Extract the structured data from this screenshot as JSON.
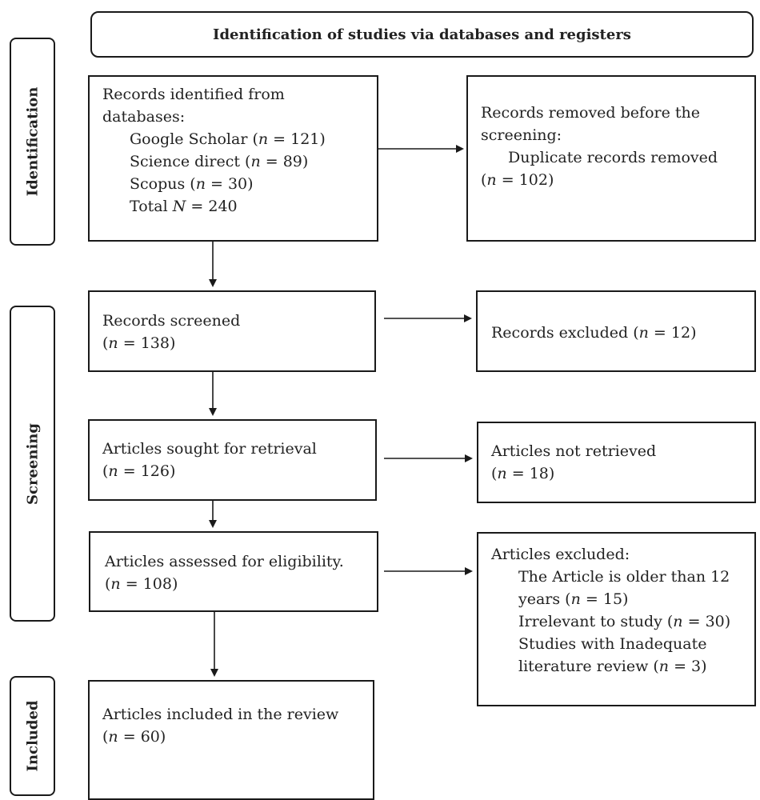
{
  "header": "Identification of studies via databases and registers",
  "phases": {
    "identification": "Identification",
    "screening": "Screening",
    "included": "Included"
  },
  "identified": {
    "line1": "Records identified from",
    "line2": "databases:",
    "sources": [
      {
        "name": "Google Scholar",
        "n": "121"
      },
      {
        "name": "Science direct",
        "n": "89"
      },
      {
        "name": "Scopus",
        "n": "30"
      }
    ],
    "total_label": "Total",
    "total_var": "N",
    "total_value": "240"
  },
  "removed": {
    "line1": "Records removed before the",
    "line2": "screening:",
    "line3": "Duplicate records removed",
    "n": "102"
  },
  "screened": {
    "label": "Records screened",
    "n": "138"
  },
  "excluded": {
    "label": "Records excluded",
    "n": "12"
  },
  "sought": {
    "label": "Articles sought for retrieval",
    "n": "126"
  },
  "not_retrieved": {
    "label": "Articles not retrieved",
    "n": "18"
  },
  "assessed": {
    "label": "Articles assessed for eligibility.",
    "n": "108"
  },
  "articles_excluded": {
    "title": "Articles excluded:",
    "r1a": "The Article is older than 12",
    "r1b": "years",
    "r1n": "15",
    "r2": "Irrelevant to study",
    "r2n": "30",
    "r3a": "Studies with Inadequate",
    "r3b": "literature review",
    "r3n": "3"
  },
  "included": {
    "label": "Articles included in the review",
    "n": "60"
  },
  "n_symbol": "n",
  "eq": "="
}
